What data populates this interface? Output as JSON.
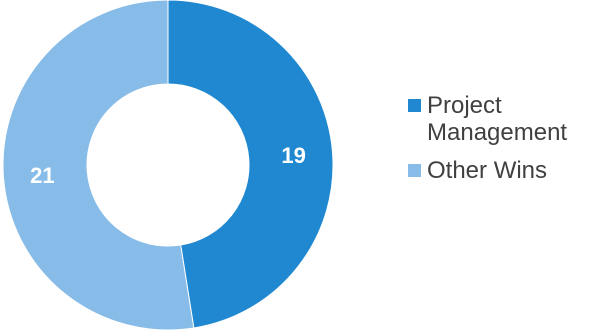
{
  "chart_data": {
    "type": "pie",
    "variant": "donut",
    "title": "",
    "slices": [
      {
        "name": "Project Management",
        "value": 19,
        "color": "#1F88D0"
      },
      {
        "name": "Other Wins",
        "value": 21,
        "color": "#87BBE8"
      }
    ],
    "start_angle": "top, clockwise",
    "legend_position": "right",
    "data_label_color": "#FFFFFF"
  }
}
